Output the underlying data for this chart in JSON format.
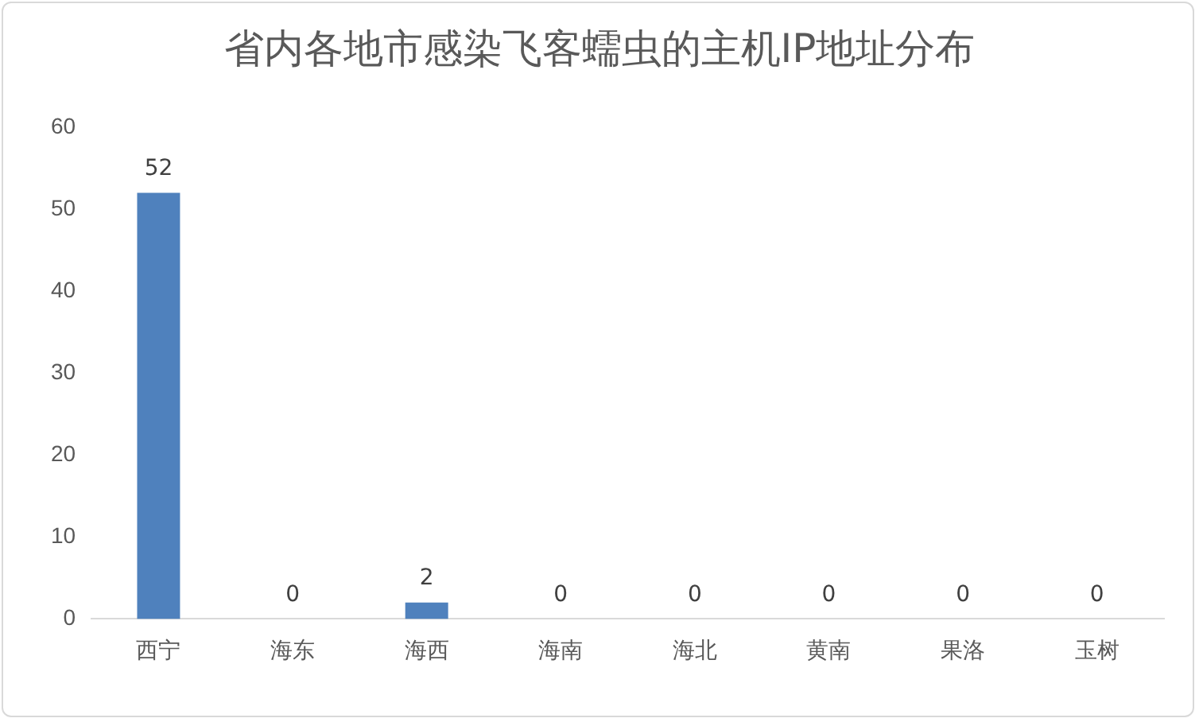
{
  "chart_data": {
    "type": "bar",
    "title": "省内各地市感染飞客蠕虫的主机IP地址分布",
    "categories": [
      "西宁",
      "海东",
      "海西",
      "海南",
      "海北",
      "黄南",
      "果洛",
      "玉树"
    ],
    "values": [
      52,
      0,
      2,
      0,
      0,
      0,
      0,
      0
    ],
    "color": "#4f81bd",
    "ylim": [
      0,
      60
    ],
    "yticks": [
      0,
      10,
      20,
      30,
      40,
      50,
      60
    ],
    "data_labels": true
  }
}
